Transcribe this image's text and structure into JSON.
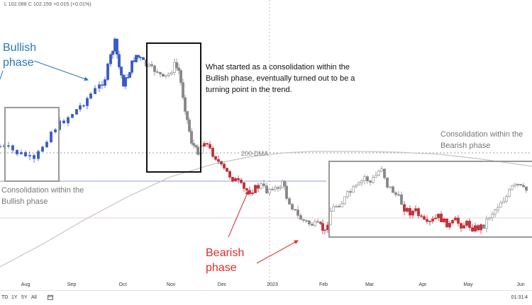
{
  "header": {
    "ohlc_text": "L 102.088  C 102.159  +0.015 (+0.01%)"
  },
  "annotations": {
    "bullish_phase": [
      "Bullish",
      "phase"
    ],
    "bearish_phase": [
      "Bearish",
      "phase"
    ],
    "note": [
      "What started as a consolidation within the",
      "Bullish phase, eventually turned out to be a",
      "turning point in the trend."
    ],
    "consol_bullish": [
      "Consolidation within the",
      "Bullish phase"
    ],
    "consol_bearish": [
      "Consolidation within the",
      "Bearish phase"
    ],
    "dma_label": "200-DMA"
  },
  "bottom_bar": {
    "ranges": [
      "TD",
      "1Y",
      "5Y",
      "All"
    ],
    "time": "01:31:4"
  },
  "colors": {
    "bullish_candle": "#3a5bc7",
    "bearish_candle": "#c0303a",
    "neutral_candle": "#888888",
    "bullish_text": "#2a78b8",
    "bearish_text": "#e02a2a",
    "box_black": "#111111",
    "box_gray": "#999999",
    "dma_line": "#c4c4c4"
  },
  "chart_data": {
    "type": "candlestick",
    "x_tick_labels": [
      "Aug",
      "Sep",
      "Oct",
      "Nov",
      "Dec",
      "2023",
      "Feb",
      "Mar",
      "Apr",
      "May",
      "Jun"
    ],
    "series": [
      {
        "name": "200-DMA",
        "type": "line",
        "points": [
          [
            0,
            377
          ],
          [
            60,
            345
          ],
          [
            120,
            310
          ],
          [
            180,
            278
          ],
          [
            240,
            250
          ],
          [
            300,
            232
          ],
          [
            350,
            222
          ],
          [
            400,
            216
          ],
          [
            440,
            214
          ],
          [
            500,
            214
          ],
          [
            560,
            215
          ],
          [
            620,
            218
          ],
          [
            680,
            225
          ],
          [
            750,
            235
          ]
        ]
      }
    ],
    "price_path": [
      [
        0,
        207,
        "b"
      ],
      [
        12,
        210,
        "b"
      ],
      [
        24,
        216,
        "b"
      ],
      [
        36,
        220,
        "b"
      ],
      [
        48,
        228,
        "b"
      ],
      [
        60,
        206,
        "b"
      ],
      [
        72,
        186,
        "b"
      ],
      [
        84,
        175,
        "b"
      ],
      [
        96,
        165,
        "b"
      ],
      [
        108,
        155,
        "b"
      ],
      [
        118,
        145,
        "b"
      ],
      [
        128,
        133,
        "b"
      ],
      [
        140,
        122,
        "b"
      ],
      [
        148,
        110,
        "b"
      ],
      [
        156,
        80,
        "b"
      ],
      [
        162,
        60,
        "b"
      ],
      [
        168,
        95,
        "b"
      ],
      [
        174,
        118,
        "b"
      ],
      [
        180,
        108,
        "b"
      ],
      [
        186,
        90,
        "b"
      ],
      [
        192,
        78,
        "b"
      ],
      [
        198,
        84,
        "b"
      ],
      [
        206,
        92,
        "n"
      ],
      [
        214,
        98,
        "n"
      ],
      [
        222,
        100,
        "n"
      ],
      [
        230,
        112,
        "n"
      ],
      [
        238,
        105,
        "n"
      ],
      [
        246,
        92,
        "n"
      ],
      [
        252,
        100,
        "n"
      ],
      [
        258,
        135,
        "n"
      ],
      [
        264,
        170,
        "n"
      ],
      [
        270,
        200,
        "n"
      ],
      [
        276,
        212,
        "n"
      ],
      [
        282,
        215,
        "n"
      ],
      [
        288,
        198,
        "r"
      ],
      [
        296,
        212,
        "r"
      ],
      [
        304,
        222,
        "r"
      ],
      [
        312,
        236,
        "r"
      ],
      [
        320,
        244,
        "r"
      ],
      [
        328,
        252,
        "r"
      ],
      [
        336,
        258,
        "r"
      ],
      [
        344,
        268,
        "r"
      ],
      [
        352,
        270,
        "r"
      ],
      [
        360,
        266,
        "r"
      ],
      [
        368,
        262,
        "n"
      ],
      [
        376,
        270,
        "n"
      ],
      [
        384,
        263,
        "n"
      ],
      [
        392,
        270,
        "n"
      ],
      [
        398,
        255,
        "n"
      ],
      [
        404,
        278,
        "n"
      ],
      [
        412,
        292,
        "n"
      ],
      [
        420,
        306,
        "n"
      ],
      [
        428,
        312,
        "n"
      ],
      [
        436,
        316,
        "n"
      ],
      [
        444,
        318,
        "n"
      ],
      [
        452,
        320,
        "r"
      ],
      [
        458,
        328,
        "r"
      ],
      [
        466,
        298,
        "n"
      ],
      [
        474,
        290,
        "n"
      ],
      [
        482,
        286,
        "n"
      ],
      [
        490,
        275,
        "n"
      ],
      [
        498,
        268,
        "n"
      ],
      [
        506,
        262,
        "n"
      ],
      [
        514,
        250,
        "n"
      ],
      [
        522,
        258,
        "n"
      ],
      [
        530,
        248,
        "n"
      ],
      [
        538,
        236,
        "n"
      ],
      [
        546,
        262,
        "n"
      ],
      [
        554,
        270,
        "n"
      ],
      [
        562,
        280,
        "n"
      ],
      [
        570,
        294,
        "r"
      ],
      [
        578,
        300,
        "r"
      ],
      [
        586,
        298,
        "r"
      ],
      [
        594,
        310,
        "r"
      ],
      [
        602,
        318,
        "r"
      ],
      [
        610,
        312,
        "r"
      ],
      [
        618,
        306,
        "r"
      ],
      [
        626,
        314,
        "r"
      ],
      [
        634,
        318,
        "r"
      ],
      [
        642,
        312,
        "r"
      ],
      [
        650,
        318,
        "r"
      ],
      [
        658,
        316,
        "r"
      ],
      [
        666,
        322,
        "r"
      ],
      [
        674,
        322,
        "r"
      ],
      [
        682,
        318,
        "n"
      ],
      [
        690,
        305,
        "n"
      ],
      [
        698,
        296,
        "n"
      ],
      [
        706,
        285,
        "n"
      ],
      [
        714,
        278,
        "n"
      ],
      [
        722,
        265,
        "n"
      ],
      [
        730,
        262,
        "n"
      ],
      [
        738,
        268,
        "n"
      ],
      [
        746,
        270,
        "n"
      ]
    ]
  }
}
